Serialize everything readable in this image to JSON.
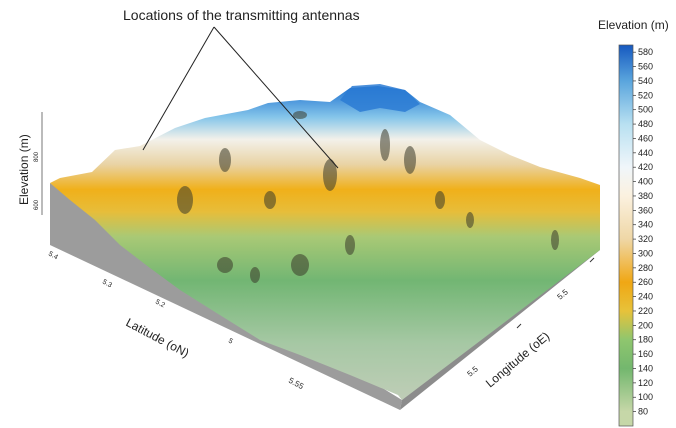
{
  "chart_data": {
    "type": "surface3d",
    "annotation": "Locations of the transmitting antennas",
    "zlabel": "Elevation (m)",
    "xlabel": "Latitude (oN)",
    "ylabel": "Longitude (oE)",
    "colorbar": {
      "title": "Elevation (m)",
      "ticks": [
        580,
        560,
        540,
        520,
        500,
        480,
        460,
        440,
        420,
        400,
        380,
        360,
        340,
        320,
        300,
        280,
        260,
        240,
        220,
        200,
        180,
        160,
        140,
        120,
        100,
        80
      ],
      "range": [
        60,
        590
      ],
      "colors": [
        {
          "at": 80,
          "color": "#c6d7a8"
        },
        {
          "at": 140,
          "color": "#73b76e"
        },
        {
          "at": 180,
          "color": "#8fc66e"
        },
        {
          "at": 220,
          "color": "#e7c23a"
        },
        {
          "at": 260,
          "color": "#f0a714"
        },
        {
          "at": 320,
          "color": "#efd7a6"
        },
        {
          "at": 380,
          "color": "#fbf1df"
        },
        {
          "at": 420,
          "color": "#f0f6fa"
        },
        {
          "at": 480,
          "color": "#b8e0f1"
        },
        {
          "at": 540,
          "color": "#5aa5dd"
        },
        {
          "at": 590,
          "color": "#1659c0"
        }
      ]
    },
    "latitude_ticks": [
      "5.4",
      "5.3",
      "5.2",
      "5",
      "5.55"
    ],
    "longitude_ticks": [
      "5.5",
      "5.5"
    ],
    "elevation_ticks": [
      "800",
      "600"
    ]
  }
}
